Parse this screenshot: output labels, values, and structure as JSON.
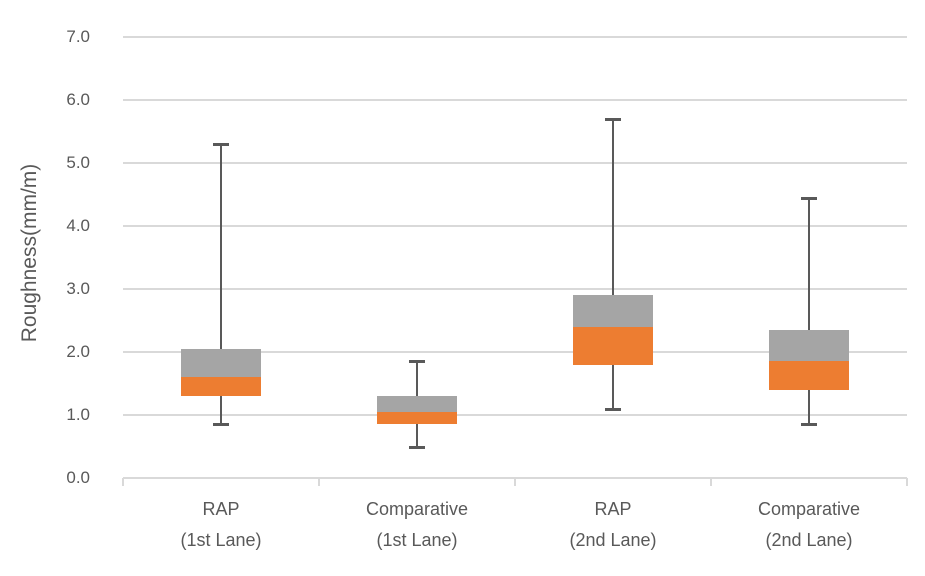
{
  "chart_data": {
    "type": "box",
    "title": "",
    "xlabel": "",
    "ylabel": "Roughness(mm/m)",
    "ylim": [
      0.0,
      7.0
    ],
    "yticks": [
      "0.0",
      "1.0",
      "2.0",
      "3.0",
      "4.0",
      "5.0",
      "6.0",
      "7.0"
    ],
    "grid": true,
    "legend": "none",
    "boxes": [
      {
        "label_line1": "RAP",
        "label_line2": "(1st Lane)",
        "min": 0.85,
        "q1": 1.3,
        "median": 1.6,
        "q3": 2.05,
        "max": 5.3
      },
      {
        "label_line1": "Comparative",
        "label_line2": "(1st Lane)",
        "min": 0.5,
        "q1": 0.85,
        "median": 1.05,
        "q3": 1.3,
        "max": 1.85
      },
      {
        "label_line1": "RAP",
        "label_line2": "(2nd Lane)",
        "min": 1.1,
        "q1": 1.8,
        "median": 2.4,
        "q3": 2.9,
        "max": 5.7
      },
      {
        "label_line1": "Comparative",
        "label_line2": "(2nd Lane)",
        "min": 0.85,
        "q1": 1.4,
        "median": 1.85,
        "q3": 2.35,
        "max": 4.45
      }
    ],
    "colors": {
      "box_upper_segment": "#a5a5a5",
      "box_lower_segment": "#ed7d31",
      "whisker": "#595959",
      "gridline": "#d9d9d9",
      "axis_line": "#d9d9d9",
      "text": "#595959"
    }
  }
}
